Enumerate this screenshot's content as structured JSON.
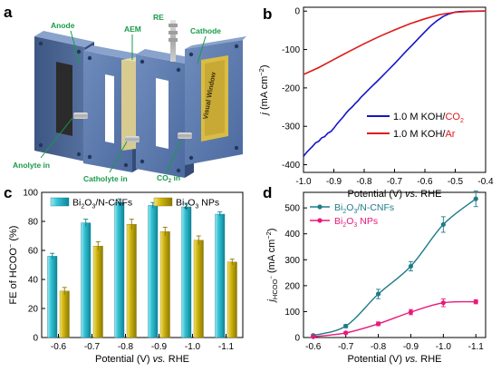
{
  "panel_labels": {
    "a": "a",
    "b": "b",
    "c": "c",
    "d": "d"
  },
  "schematic": {
    "labels": {
      "anode": "Anode",
      "aem": "AEM",
      "re": "RE",
      "cathode": "Cathode",
      "anolyte_in": "Anolyte in",
      "catholyte_in": "Catholyte in",
      "co2_in_main": "CO",
      "co2_in_sub": "2",
      "co2_in_tail": " in",
      "window": "Visual Window"
    }
  },
  "chart_data": [
    {
      "panel": "b",
      "type": "line",
      "xlabel_main": "Potential (V) ",
      "xlabel_italic": "vs.",
      "xlabel_tail": " RHE",
      "ylabel_j": "j",
      "ylabel_unit": " (mA cm",
      "ylabel_exp": "−2",
      "ylabel_close": ")",
      "xlim": [
        -1.0,
        -0.4
      ],
      "ylim": [
        -420,
        10
      ],
      "xticks": [
        -1.0,
        -0.9,
        -0.8,
        -0.7,
        -0.6,
        -0.5,
        -0.4
      ],
      "xtick_labels": [
        "-1.0",
        "-0.9",
        "-0.8",
        "-0.7",
        "-0.6",
        "-0.5",
        "-0.4"
      ],
      "yticks": [
        0,
        -100,
        -200,
        -300,
        -400
      ],
      "ytick_labels": [
        "0",
        "-100",
        "-200",
        "-300",
        "-400"
      ],
      "legend_position": "bottom-right",
      "series": [
        {
          "name_main": "1.0 M KOH/",
          "name_gas": "CO",
          "name_sub": "2",
          "color": "#1515c8",
          "gas_color": "#e01818",
          "x": [
            -1.0,
            -0.99,
            -0.98,
            -0.97,
            -0.96,
            -0.95,
            -0.94,
            -0.93,
            -0.92,
            -0.91,
            -0.9,
            -0.89,
            -0.88,
            -0.87,
            -0.86,
            -0.85,
            -0.84,
            -0.83,
            -0.82,
            -0.81,
            -0.8,
            -0.78,
            -0.76,
            -0.74,
            -0.72,
            -0.7,
            -0.68,
            -0.66,
            -0.64,
            -0.62,
            -0.6,
            -0.58,
            -0.56,
            -0.54,
            -0.52,
            -0.5,
            -0.48,
            -0.46,
            -0.44,
            -0.42,
            -0.4
          ],
          "y": [
            -378,
            -368,
            -360,
            -352,
            -343,
            -339,
            -330,
            -327,
            -318,
            -314,
            -305,
            -294,
            -285,
            -276,
            -266,
            -257,
            -250,
            -241,
            -233,
            -224,
            -216,
            -200,
            -185,
            -169,
            -153,
            -137,
            -120,
            -103,
            -87,
            -70,
            -54,
            -38,
            -25,
            -14,
            -7,
            -2.5,
            -1,
            -0.4,
            -0.2,
            0,
            0
          ]
        },
        {
          "name_main": "1.0 M KOH/",
          "name_gas": "Ar",
          "name_sub": "",
          "color": "#e01818",
          "gas_color": "#e01818",
          "x": [
            -1.0,
            -0.95,
            -0.9,
            -0.85,
            -0.8,
            -0.75,
            -0.7,
            -0.65,
            -0.6,
            -0.55,
            -0.5,
            -0.45,
            -0.4
          ],
          "y": [
            -165,
            -147,
            -126,
            -105,
            -85,
            -66,
            -49,
            -33,
            -20,
            -9,
            -3,
            -0.5,
            0
          ]
        }
      ]
    },
    {
      "panel": "c",
      "type": "bar",
      "xlabel_main": "Potential (V) ",
      "xlabel_italic": "vs.",
      "xlabel_tail": " RHE",
      "ylabel_main": "FE of HCOO",
      "ylabel_exp": "−",
      "ylabel_tail": " (%)",
      "categories": [
        "-0.6",
        "-0.7",
        "-0.8",
        "-0.9",
        "-1.0",
        "-1.1"
      ],
      "ylim": [
        0,
        100
      ],
      "yticks": [
        0,
        20,
        40,
        60,
        80,
        100
      ],
      "ytick_labels": [
        "0",
        "20",
        "40",
        "60",
        "80",
        "100"
      ],
      "legend_position": "top",
      "series": [
        {
          "name_main": "Bi",
          "name_sub1": "2",
          "name_mid": "O",
          "name_sub2": "3",
          "name_tail": "/N-CNFs",
          "color": "#28bcd0",
          "dark": "#0d7f92",
          "values": [
            56,
            79,
            93,
            91,
            90,
            85
          ],
          "errors": [
            2,
            2.5,
            2.5,
            2,
            2.5,
            1.5
          ]
        },
        {
          "name_main": "Bi",
          "name_sub1": "2",
          "name_mid": "O",
          "name_sub2": "3",
          "name_tail": " NPs",
          "color": "#cfb612",
          "dark": "#8c7a05",
          "values": [
            32,
            63,
            78,
            73,
            67,
            52
          ],
          "errors": [
            2.5,
            3,
            3.5,
            3,
            3,
            2
          ]
        }
      ]
    },
    {
      "panel": "d",
      "type": "line",
      "xlabel_main": "Potential (V) ",
      "xlabel_italic": "vs.",
      "xlabel_tail": " RHE",
      "ylabel_j": "j",
      "ylabel_sub": "HCOO",
      "ylabel_subexp": "−",
      "ylabel_unit": " (mA cm",
      "ylabel_exp": "−2",
      "ylabel_close": ")",
      "xlim": [
        -0.57,
        -1.13
      ],
      "ylim": [
        0,
        560
      ],
      "xticks": [
        -0.6,
        -0.7,
        -0.8,
        -0.9,
        -1.0,
        -1.1
      ],
      "xtick_labels": [
        "-0.6",
        "-0.7",
        "-0.8",
        "-0.9",
        "-1.0",
        "-1.1"
      ],
      "yticks": [
        0,
        100,
        200,
        300,
        400,
        500
      ],
      "ytick_labels": [
        "0",
        "100",
        "200",
        "300",
        "400",
        "500"
      ],
      "legend_position": "top-left",
      "series": [
        {
          "name_main": "Bi",
          "name_sub1": "2",
          "name_mid": "O",
          "name_sub2": "3",
          "name_tail": "/N-CNFs",
          "color": "#1f7c8a",
          "x": [
            -0.6,
            -0.7,
            -0.8,
            -0.9,
            -1.0,
            -1.1
          ],
          "y": [
            8,
            44,
            168,
            275,
            436,
            535
          ],
          "errors": [
            4,
            6,
            18,
            18,
            30,
            30
          ]
        },
        {
          "name_main": "Bi",
          "name_sub1": "2",
          "name_mid": "O",
          "name_sub2": "3",
          "name_tail": " NPs",
          "color": "#e8197b",
          "x": [
            -0.6,
            -0.7,
            -0.8,
            -0.9,
            -1.0,
            -1.1
          ],
          "y": [
            3,
            18,
            53,
            98,
            134,
            138
          ],
          "errors": [
            3,
            4,
            7,
            10,
            15,
            8
          ]
        }
      ]
    }
  ]
}
